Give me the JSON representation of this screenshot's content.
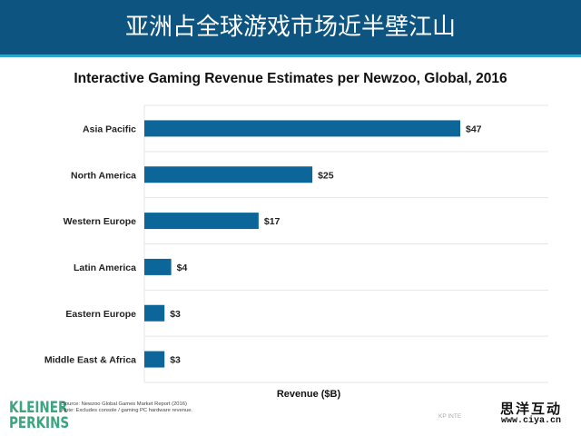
{
  "header": {
    "title": "亚洲占全球游戏市场近半壁江山"
  },
  "chart_data": {
    "type": "bar",
    "orientation": "horizontal",
    "title": "Interactive Gaming Revenue Estimates per Newzoo, Global, 2016",
    "xlabel": "Revenue ($B)",
    "ylabel": "",
    "categories": [
      "Asia Pacific",
      "North America",
      "Western Europe",
      "Latin America",
      "Eastern Europe",
      "Middle East & Africa"
    ],
    "values": [
      47,
      25,
      17,
      4,
      3,
      3
    ],
    "value_labels": [
      "$47",
      "$25",
      "$17",
      "$4",
      "$3",
      "$3"
    ],
    "xlim": [
      0,
      60
    ],
    "grid": true,
    "legend": "none",
    "bar_color": "#0d6699"
  },
  "footer": {
    "logo_line1": "KLEINER",
    "logo_line2": "PERKINS",
    "source_line1": "Source: Newzoo Global Games Market Report (2016)",
    "source_line2": "Note: Excludes console / gaming PC hardware revenue.",
    "code": "KP INTE",
    "watermark_cn": "思洋互动",
    "watermark_url": "www.ciya.cn"
  }
}
